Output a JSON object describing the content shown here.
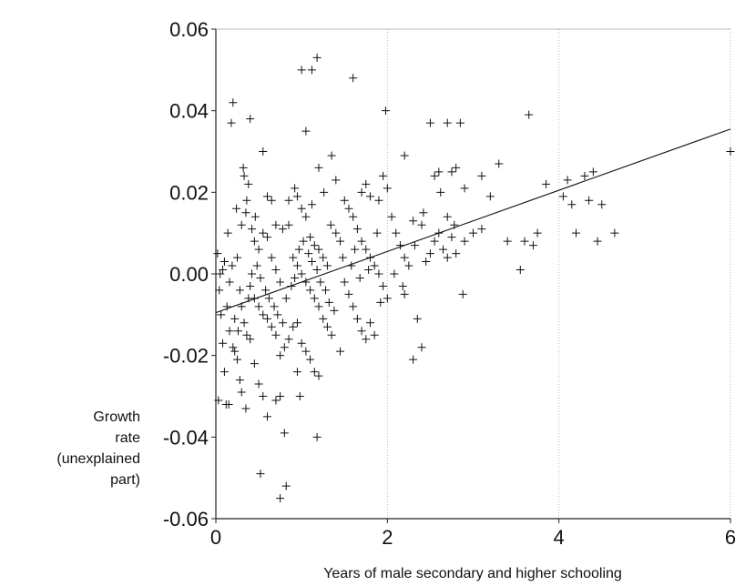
{
  "chart_data": {
    "type": "scatter",
    "title": "",
    "xlabel": "Years of male secondary and higher schooling",
    "ylabel_lines": [
      "Growth",
      "rate",
      "(unexplained",
      "part)"
    ],
    "xlim": [
      0,
      6
    ],
    "ylim": [
      -0.06,
      0.06
    ],
    "x_ticks": [
      "0",
      "2",
      "4",
      "6"
    ],
    "y_ticks": [
      "0.06",
      "0.04",
      "0.02",
      "0.00",
      "-0.02",
      "-0.04",
      "-0.06"
    ],
    "x_tick_values": [
      0,
      2,
      4,
      6
    ],
    "y_tick_values": [
      0.06,
      0.04,
      0.02,
      0.0,
      -0.02,
      -0.04,
      -0.06
    ],
    "grid": "vertical dotted at x ticks",
    "marker": "plus",
    "trend_line": {
      "x": [
        0,
        6
      ],
      "y": [
        -0.0095,
        0.0355
      ]
    },
    "points": [
      [
        0.02,
        0.005
      ],
      [
        0.05,
        0.0
      ],
      [
        0.08,
        0.001
      ],
      [
        0.1,
        0.003
      ],
      [
        0.04,
        -0.004
      ],
      [
        0.06,
        -0.01
      ],
      [
        0.08,
        -0.017
      ],
      [
        0.1,
        -0.024
      ],
      [
        0.03,
        -0.031
      ],
      [
        0.12,
        -0.032
      ],
      [
        0.15,
        -0.032
      ],
      [
        0.16,
        -0.014
      ],
      [
        0.2,
        -0.018
      ],
      [
        0.22,
        -0.019
      ],
      [
        0.25,
        -0.021
      ],
      [
        0.28,
        -0.026
      ],
      [
        0.3,
        -0.029
      ],
      [
        0.35,
        -0.033
      ],
      [
        0.18,
        0.037
      ],
      [
        0.2,
        0.042
      ],
      [
        0.4,
        0.038
      ],
      [
        0.32,
        0.026
      ],
      [
        0.33,
        0.024
      ],
      [
        0.38,
        0.022
      ],
      [
        0.42,
        0.011
      ],
      [
        0.3,
        0.012
      ],
      [
        0.35,
        0.015
      ],
      [
        0.45,
        0.008
      ],
      [
        0.5,
        0.006
      ],
      [
        0.55,
        0.01
      ],
      [
        0.6,
        0.009
      ],
      [
        0.65,
        0.004
      ],
      [
        0.7,
        0.001
      ],
      [
        0.75,
        -0.002
      ],
      [
        0.45,
        -0.006
      ],
      [
        0.5,
        -0.008
      ],
      [
        0.55,
        -0.01
      ],
      [
        0.6,
        -0.011
      ],
      [
        0.65,
        -0.013
      ],
      [
        0.7,
        -0.015
      ],
      [
        0.75,
        -0.02
      ],
      [
        0.8,
        -0.018
      ],
      [
        0.85,
        -0.016
      ],
      [
        0.9,
        -0.013
      ],
      [
        0.95,
        -0.012
      ],
      [
        0.4,
        -0.016
      ],
      [
        0.45,
        -0.022
      ],
      [
        0.5,
        -0.027
      ],
      [
        0.55,
        -0.03
      ],
      [
        0.6,
        -0.035
      ],
      [
        0.7,
        -0.031
      ],
      [
        0.75,
        -0.03
      ],
      [
        0.8,
        -0.039
      ],
      [
        0.52,
        -0.049
      ],
      [
        0.75,
        -0.055
      ],
      [
        0.82,
        -0.052
      ],
      [
        0.55,
        0.03
      ],
      [
        0.6,
        0.019
      ],
      [
        0.65,
        0.018
      ],
      [
        0.7,
        0.012
      ],
      [
        0.78,
        0.011
      ],
      [
        0.85,
        0.018
      ],
      [
        0.92,
        0.021
      ],
      [
        0.95,
        0.019
      ],
      [
        1.0,
        0.016
      ],
      [
        1.05,
        0.014
      ],
      [
        1.1,
        0.009
      ],
      [
        1.15,
        0.007
      ],
      [
        1.2,
        0.006
      ],
      [
        1.25,
        0.004
      ],
      [
        1.3,
        0.002
      ],
      [
        0.9,
        0.004
      ],
      [
        0.95,
        0.002
      ],
      [
        1.0,
        0.0
      ],
      [
        1.05,
        -0.002
      ],
      [
        1.1,
        -0.004
      ],
      [
        1.15,
        -0.006
      ],
      [
        1.2,
        -0.008
      ],
      [
        1.25,
        -0.011
      ],
      [
        1.3,
        -0.013
      ],
      [
        1.35,
        -0.015
      ],
      [
        1.0,
        -0.017
      ],
      [
        1.05,
        -0.019
      ],
      [
        1.1,
        -0.021
      ],
      [
        1.15,
        -0.024
      ],
      [
        1.2,
        -0.025
      ],
      [
        0.95,
        -0.024
      ],
      [
        0.98,
        -0.03
      ],
      [
        1.18,
        -0.04
      ],
      [
        1.0,
        0.05
      ],
      [
        1.12,
        0.05
      ],
      [
        1.18,
        0.053
      ],
      [
        1.6,
        0.048
      ],
      [
        1.05,
        0.035
      ],
      [
        1.35,
        0.029
      ],
      [
        1.2,
        0.026
      ],
      [
        1.4,
        0.023
      ],
      [
        1.5,
        0.018
      ],
      [
        1.55,
        0.016
      ],
      [
        1.6,
        0.014
      ],
      [
        1.65,
        0.011
      ],
      [
        1.7,
        0.008
      ],
      [
        1.75,
        0.006
      ],
      [
        1.8,
        0.004
      ],
      [
        1.85,
        0.002
      ],
      [
        1.9,
        0.0
      ],
      [
        1.95,
        -0.003
      ],
      [
        2.0,
        -0.006
      ],
      [
        1.5,
        -0.002
      ],
      [
        1.55,
        -0.005
      ],
      [
        1.6,
        -0.008
      ],
      [
        1.65,
        -0.011
      ],
      [
        1.7,
        -0.014
      ],
      [
        1.75,
        -0.016
      ],
      [
        1.45,
        -0.019
      ],
      [
        1.8,
        -0.012
      ],
      [
        1.85,
        -0.015
      ],
      [
        1.4,
        0.01
      ],
      [
        1.45,
        0.008
      ],
      [
        1.7,
        0.02
      ],
      [
        1.75,
        0.022
      ],
      [
        1.8,
        0.019
      ],
      [
        1.9,
        0.018
      ],
      [
        1.95,
        0.024
      ],
      [
        2.0,
        0.021
      ],
      [
        2.05,
        0.014
      ],
      [
        2.1,
        0.01
      ],
      [
        2.15,
        0.007
      ],
      [
        2.2,
        0.004
      ],
      [
        2.25,
        0.002
      ],
      [
        2.2,
        -0.005
      ],
      [
        2.3,
        -0.021
      ],
      [
        2.4,
        -0.018
      ],
      [
        2.35,
        -0.011
      ],
      [
        2.45,
        0.003
      ],
      [
        2.5,
        0.005
      ],
      [
        2.55,
        0.008
      ],
      [
        2.6,
        0.01
      ],
      [
        2.65,
        0.006
      ],
      [
        2.7,
        0.004
      ],
      [
        2.75,
        0.009
      ],
      [
        2.8,
        0.005
      ],
      [
        2.3,
        0.013
      ],
      [
        2.4,
        0.012
      ],
      [
        2.5,
        0.037
      ],
      [
        2.7,
        0.037
      ],
      [
        2.85,
        0.037
      ],
      [
        2.55,
        0.024
      ],
      [
        2.6,
        0.025
      ],
      [
        2.7,
        0.014
      ],
      [
        2.75,
        0.025
      ],
      [
        2.8,
        0.026
      ],
      [
        2.9,
        0.021
      ],
      [
        2.9,
        0.008
      ],
      [
        3.1,
        0.024
      ],
      [
        3.2,
        0.019
      ],
      [
        3.3,
        0.027
      ],
      [
        3.0,
        0.01
      ],
      [
        3.1,
        0.011
      ],
      [
        2.88,
        -0.005
      ],
      [
        3.4,
        0.008
      ],
      [
        3.55,
        0.001
      ],
      [
        3.6,
        0.008
      ],
      [
        3.65,
        0.039
      ],
      [
        3.7,
        0.007
      ],
      [
        3.75,
        0.01
      ],
      [
        3.85,
        0.022
      ],
      [
        4.05,
        0.019
      ],
      [
        4.1,
        0.023
      ],
      [
        4.15,
        0.017
      ],
      [
        4.2,
        0.01
      ],
      [
        4.3,
        0.024
      ],
      [
        4.35,
        0.018
      ],
      [
        4.4,
        0.025
      ],
      [
        4.45,
        0.008
      ],
      [
        4.5,
        0.017
      ],
      [
        4.65,
        0.01
      ],
      [
        6.0,
        0.03
      ],
      [
        1.98,
        0.04
      ],
      [
        2.2,
        0.029
      ],
      [
        0.25,
        0.004
      ],
      [
        0.28,
        -0.004
      ],
      [
        0.3,
        -0.008
      ],
      [
        0.33,
        -0.012
      ],
      [
        0.36,
        -0.015
      ],
      [
        0.38,
        -0.006
      ],
      [
        0.4,
        -0.003
      ],
      [
        0.42,
        0.0
      ],
      [
        0.48,
        0.002
      ],
      [
        0.52,
        -0.001
      ],
      [
        0.58,
        -0.004
      ],
      [
        0.62,
        -0.006
      ],
      [
        0.68,
        -0.008
      ],
      [
        0.72,
        -0.01
      ],
      [
        0.78,
        -0.012
      ],
      [
        0.82,
        -0.006
      ],
      [
        0.88,
        -0.003
      ],
      [
        0.92,
        -0.001
      ],
      [
        0.97,
        0.006
      ],
      [
        1.02,
        0.008
      ],
      [
        1.08,
        0.005
      ],
      [
        1.12,
        0.003
      ],
      [
        1.18,
        0.001
      ],
      [
        1.22,
        -0.002
      ],
      [
        1.28,
        -0.004
      ],
      [
        1.32,
        -0.007
      ],
      [
        1.38,
        -0.009
      ],
      [
        0.13,
        -0.008
      ],
      [
        0.16,
        -0.002
      ],
      [
        0.19,
        0.002
      ],
      [
        0.22,
        -0.011
      ],
      [
        0.26,
        -0.014
      ],
      [
        0.14,
        0.01
      ],
      [
        0.24,
        0.016
      ],
      [
        0.36,
        0.018
      ],
      [
        0.46,
        0.014
      ],
      [
        0.85,
        0.012
      ],
      [
        1.12,
        0.017
      ],
      [
        1.26,
        0.02
      ],
      [
        1.34,
        0.012
      ],
      [
        1.48,
        0.004
      ],
      [
        1.58,
        0.002
      ],
      [
        1.62,
        0.006
      ],
      [
        1.68,
        -0.001
      ],
      [
        1.78,
        0.001
      ],
      [
        1.88,
        0.01
      ],
      [
        1.92,
        -0.007
      ],
      [
        2.08,
        0.0
      ],
      [
        2.18,
        -0.003
      ],
      [
        2.32,
        0.007
      ],
      [
        2.42,
        0.015
      ],
      [
        2.62,
        0.02
      ],
      [
        2.78,
        0.012
      ]
    ]
  }
}
